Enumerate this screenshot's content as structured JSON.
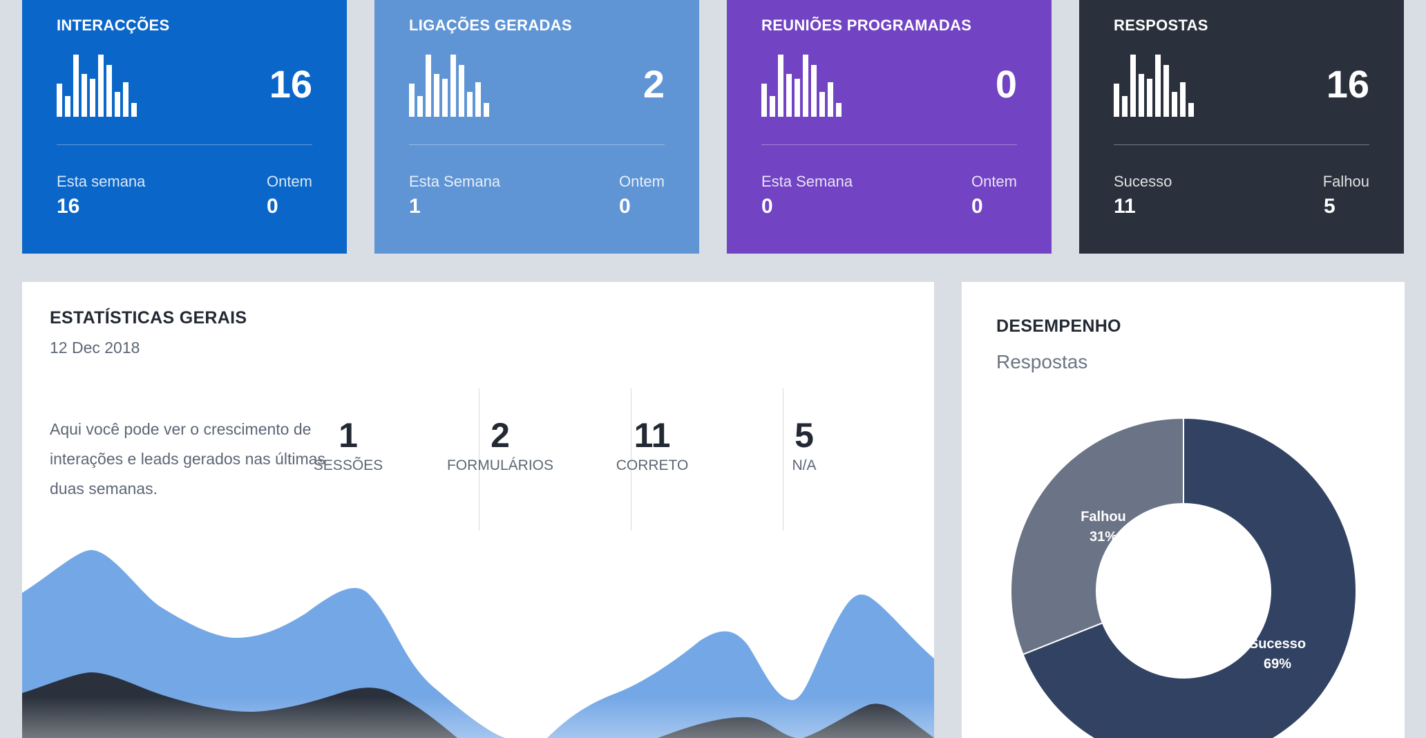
{
  "cards": [
    {
      "title": "INTERACÇÕES",
      "value": "16",
      "left_label": "Esta semana",
      "left_value": "16",
      "right_label": "Ontem",
      "right_value": "0",
      "color": "#0a66c8"
    },
    {
      "title": "LIGAÇÕES GERADAS",
      "value": "2",
      "left_label": "Esta Semana",
      "left_value": "1",
      "right_label": "Ontem",
      "right_value": "0",
      "color": "#5f95d5"
    },
    {
      "title": "REUNIÕES PROGRAMADAS",
      "value": "0",
      "left_label": "Esta Semana",
      "left_value": "0",
      "right_label": "Ontem",
      "right_value": "0",
      "color": "#7243c3"
    },
    {
      "title": "RESPOSTAS",
      "value": "16",
      "left_label": "Sucesso",
      "left_value": "11",
      "right_label": "Falhou",
      "right_value": "5",
      "color": "#2a313c"
    }
  ],
  "stats": {
    "title": "ESTATÍSTICAS GERAIS",
    "date": "12 Dec 2018",
    "description": "Aqui você pode ver o crescimento de interações e leads gerados nas últimas duas semanas.",
    "metrics": [
      {
        "value": "1",
        "label": "SESSÕES"
      },
      {
        "value": "2",
        "label": "FORMULÁRIOS"
      },
      {
        "value": "11",
        "label": "CORRETO"
      },
      {
        "value": "5",
        "label": "N/A"
      }
    ]
  },
  "performance": {
    "title": "DESEMPENHO",
    "subtitle": "Respostas",
    "slices": [
      {
        "label": "Sucesso",
        "percent": "69%",
        "value": 69,
        "color": "#314262"
      },
      {
        "label": "Falhou",
        "percent": "31%",
        "value": 31,
        "color": "#6b7487"
      }
    ]
  },
  "colors": {
    "area_light": "#74a7e6",
    "area_dark": "#2a313c",
    "background": "#d9dde4"
  }
}
